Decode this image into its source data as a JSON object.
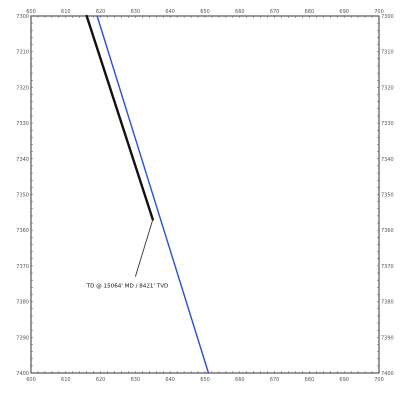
{
  "chart_data": {
    "type": "line",
    "title": "",
    "xlabel": "",
    "ylabel": "",
    "xlim": [
      600,
      700
    ],
    "ylim": [
      7300,
      7400
    ],
    "x_ticks": [
      600,
      610,
      620,
      630,
      640,
      650,
      660,
      670,
      680,
      690,
      700
    ],
    "y_ticks": [
      7300,
      7310,
      7320,
      7330,
      7340,
      7350,
      7360,
      7370,
      7380,
      7390,
      7400
    ],
    "x_tick_labels": [
      "600",
      "610",
      "620",
      "630",
      "640",
      "650",
      "660",
      "670",
      "680",
      "690",
      "700"
    ],
    "y_tick_labels": [
      "7300",
      "7310",
      "7320",
      "7330",
      "7340",
      "7350",
      "7360",
      "7370",
      "7380",
      "7390",
      "7400"
    ],
    "y_axis_inverted": true,
    "grid": true,
    "series": [
      {
        "color": "#111111",
        "points": [
          [
            616,
            7300
          ],
          [
            635,
            7357
          ]
        ]
      },
      {
        "color": "#2a4fd6",
        "points": [
          [
            619,
            7300
          ],
          [
            651,
            7400
          ]
        ]
      }
    ],
    "annotations": [
      {
        "text": "TD @ 15064' MD / 8421' TVD",
        "x": 616,
        "y": 7376,
        "pointer": [
          [
            630,
            7373
          ],
          [
            635,
            7357
          ]
        ]
      }
    ],
    "colors": {
      "grid": "#2f7fc6",
      "frame": "#555555"
    }
  }
}
